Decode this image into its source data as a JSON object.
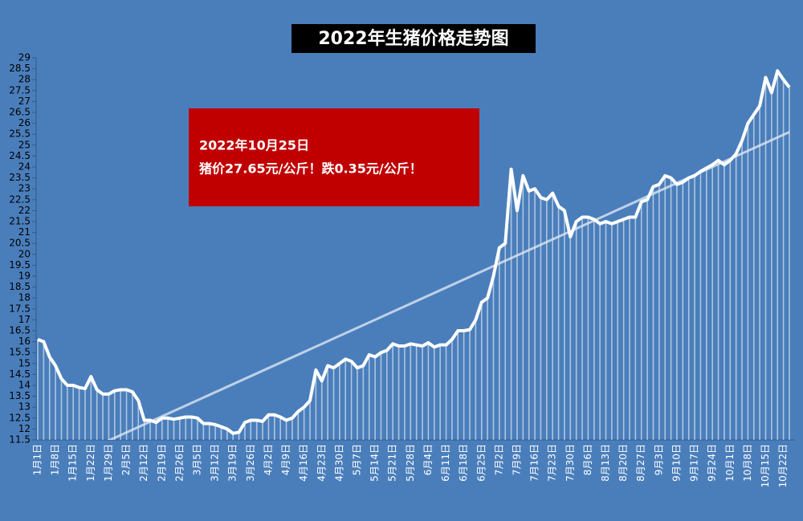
{
  "chart_data": {
    "type": "line",
    "title": "2022年生猪价格走势图",
    "annotation": [
      "2022年10月25日",
      "猪价27.65元/公斤！跌0.35元/公斤！"
    ],
    "categories": [
      "1月1日",
      null,
      null,
      "1月8日",
      null,
      null,
      "1月15日",
      null,
      null,
      "1月22日",
      null,
      null,
      "1月29日",
      null,
      null,
      "2月5日",
      null,
      null,
      "2月12日",
      null,
      null,
      "2月19日",
      null,
      null,
      "2月26日",
      null,
      null,
      "3月5日",
      null,
      null,
      "3月12日",
      null,
      null,
      "3月19日",
      null,
      null,
      "3月26日",
      null,
      null,
      "4月2日",
      null,
      null,
      "4月9日",
      null,
      null,
      "4月16日",
      null,
      null,
      "4月23日",
      null,
      null,
      "4月30日",
      null,
      null,
      "5月7日",
      null,
      null,
      "5月14日",
      null,
      null,
      "5月21日",
      null,
      null,
      "5月28日",
      null,
      null,
      "6月4日",
      null,
      null,
      "6月11日",
      null,
      null,
      "6月18日",
      null,
      null,
      "6月25日",
      null,
      null,
      "7月2日",
      null,
      null,
      "7月9日",
      null,
      null,
      "7月16日",
      null,
      null,
      "7月23日",
      null,
      null,
      "7月30日",
      null,
      null,
      "8月6日",
      null,
      null,
      "8月13日",
      null,
      null,
      "8月20日",
      null,
      null,
      "8月27日",
      null,
      null,
      "9月3日",
      null,
      null,
      "9月10日",
      null,
      null,
      "9月17日",
      null,
      null,
      "9月24日",
      null,
      null,
      "10月1日",
      null,
      null,
      "10月8日",
      null,
      null,
      "10月15日",
      null,
      null,
      "10月22日",
      null
    ],
    "values": [
      16.1,
      16.0,
      15.3,
      14.9,
      14.3,
      14.0,
      14.0,
      13.9,
      13.85,
      14.4,
      13.8,
      13.6,
      13.6,
      13.75,
      13.8,
      13.8,
      13.7,
      13.3,
      12.4,
      12.4,
      12.3,
      12.5,
      12.5,
      12.45,
      12.5,
      12.55,
      12.55,
      12.5,
      12.25,
      12.25,
      12.2,
      12.1,
      12.0,
      11.8,
      11.85,
      12.3,
      12.4,
      12.4,
      12.35,
      12.65,
      12.65,
      12.55,
      12.4,
      12.5,
      12.8,
      13.0,
      13.3,
      14.7,
      14.2,
      14.9,
      14.8,
      15.0,
      15.2,
      15.1,
      14.8,
      14.9,
      15.4,
      15.3,
      15.5,
      15.6,
      15.9,
      15.8,
      15.8,
      15.9,
      15.85,
      15.8,
      15.95,
      15.75,
      15.85,
      15.85,
      16.1,
      16.5,
      16.5,
      16.55,
      17.0,
      17.8,
      18.0,
      19.0,
      20.3,
      20.5,
      23.9,
      22.0,
      23.6,
      22.9,
      23.0,
      22.6,
      22.5,
      22.8,
      22.2,
      22.0,
      20.8,
      21.5,
      21.7,
      21.7,
      21.6,
      21.4,
      21.5,
      21.4,
      21.5,
      21.6,
      21.7,
      21.7,
      22.4,
      22.5,
      23.1,
      23.2,
      23.6,
      23.5,
      23.2,
      23.3,
      23.5,
      23.6,
      23.8,
      23.95,
      24.1,
      24.3,
      24.1,
      24.3,
      24.6,
      25.2,
      26.0,
      26.4,
      26.8,
      28.1,
      27.4,
      28.4,
      28.0,
      27.65
    ],
    "color": "#ffffff",
    "trendline": {
      "start": 10.0,
      "end": 25.6
    },
    "ylim": [
      11.5,
      29
    ],
    "yticks": [
      11.5,
      12,
      12.5,
      13,
      13.5,
      14,
      14.5,
      15,
      15.5,
      16,
      16.5,
      17,
      17.5,
      18,
      18.5,
      19,
      19.5,
      20,
      20.5,
      21,
      21.5,
      22,
      22.5,
      23,
      23.5,
      24,
      24.5,
      25,
      25.5,
      26,
      26.5,
      27,
      27.5,
      28,
      28.5,
      29
    ]
  }
}
